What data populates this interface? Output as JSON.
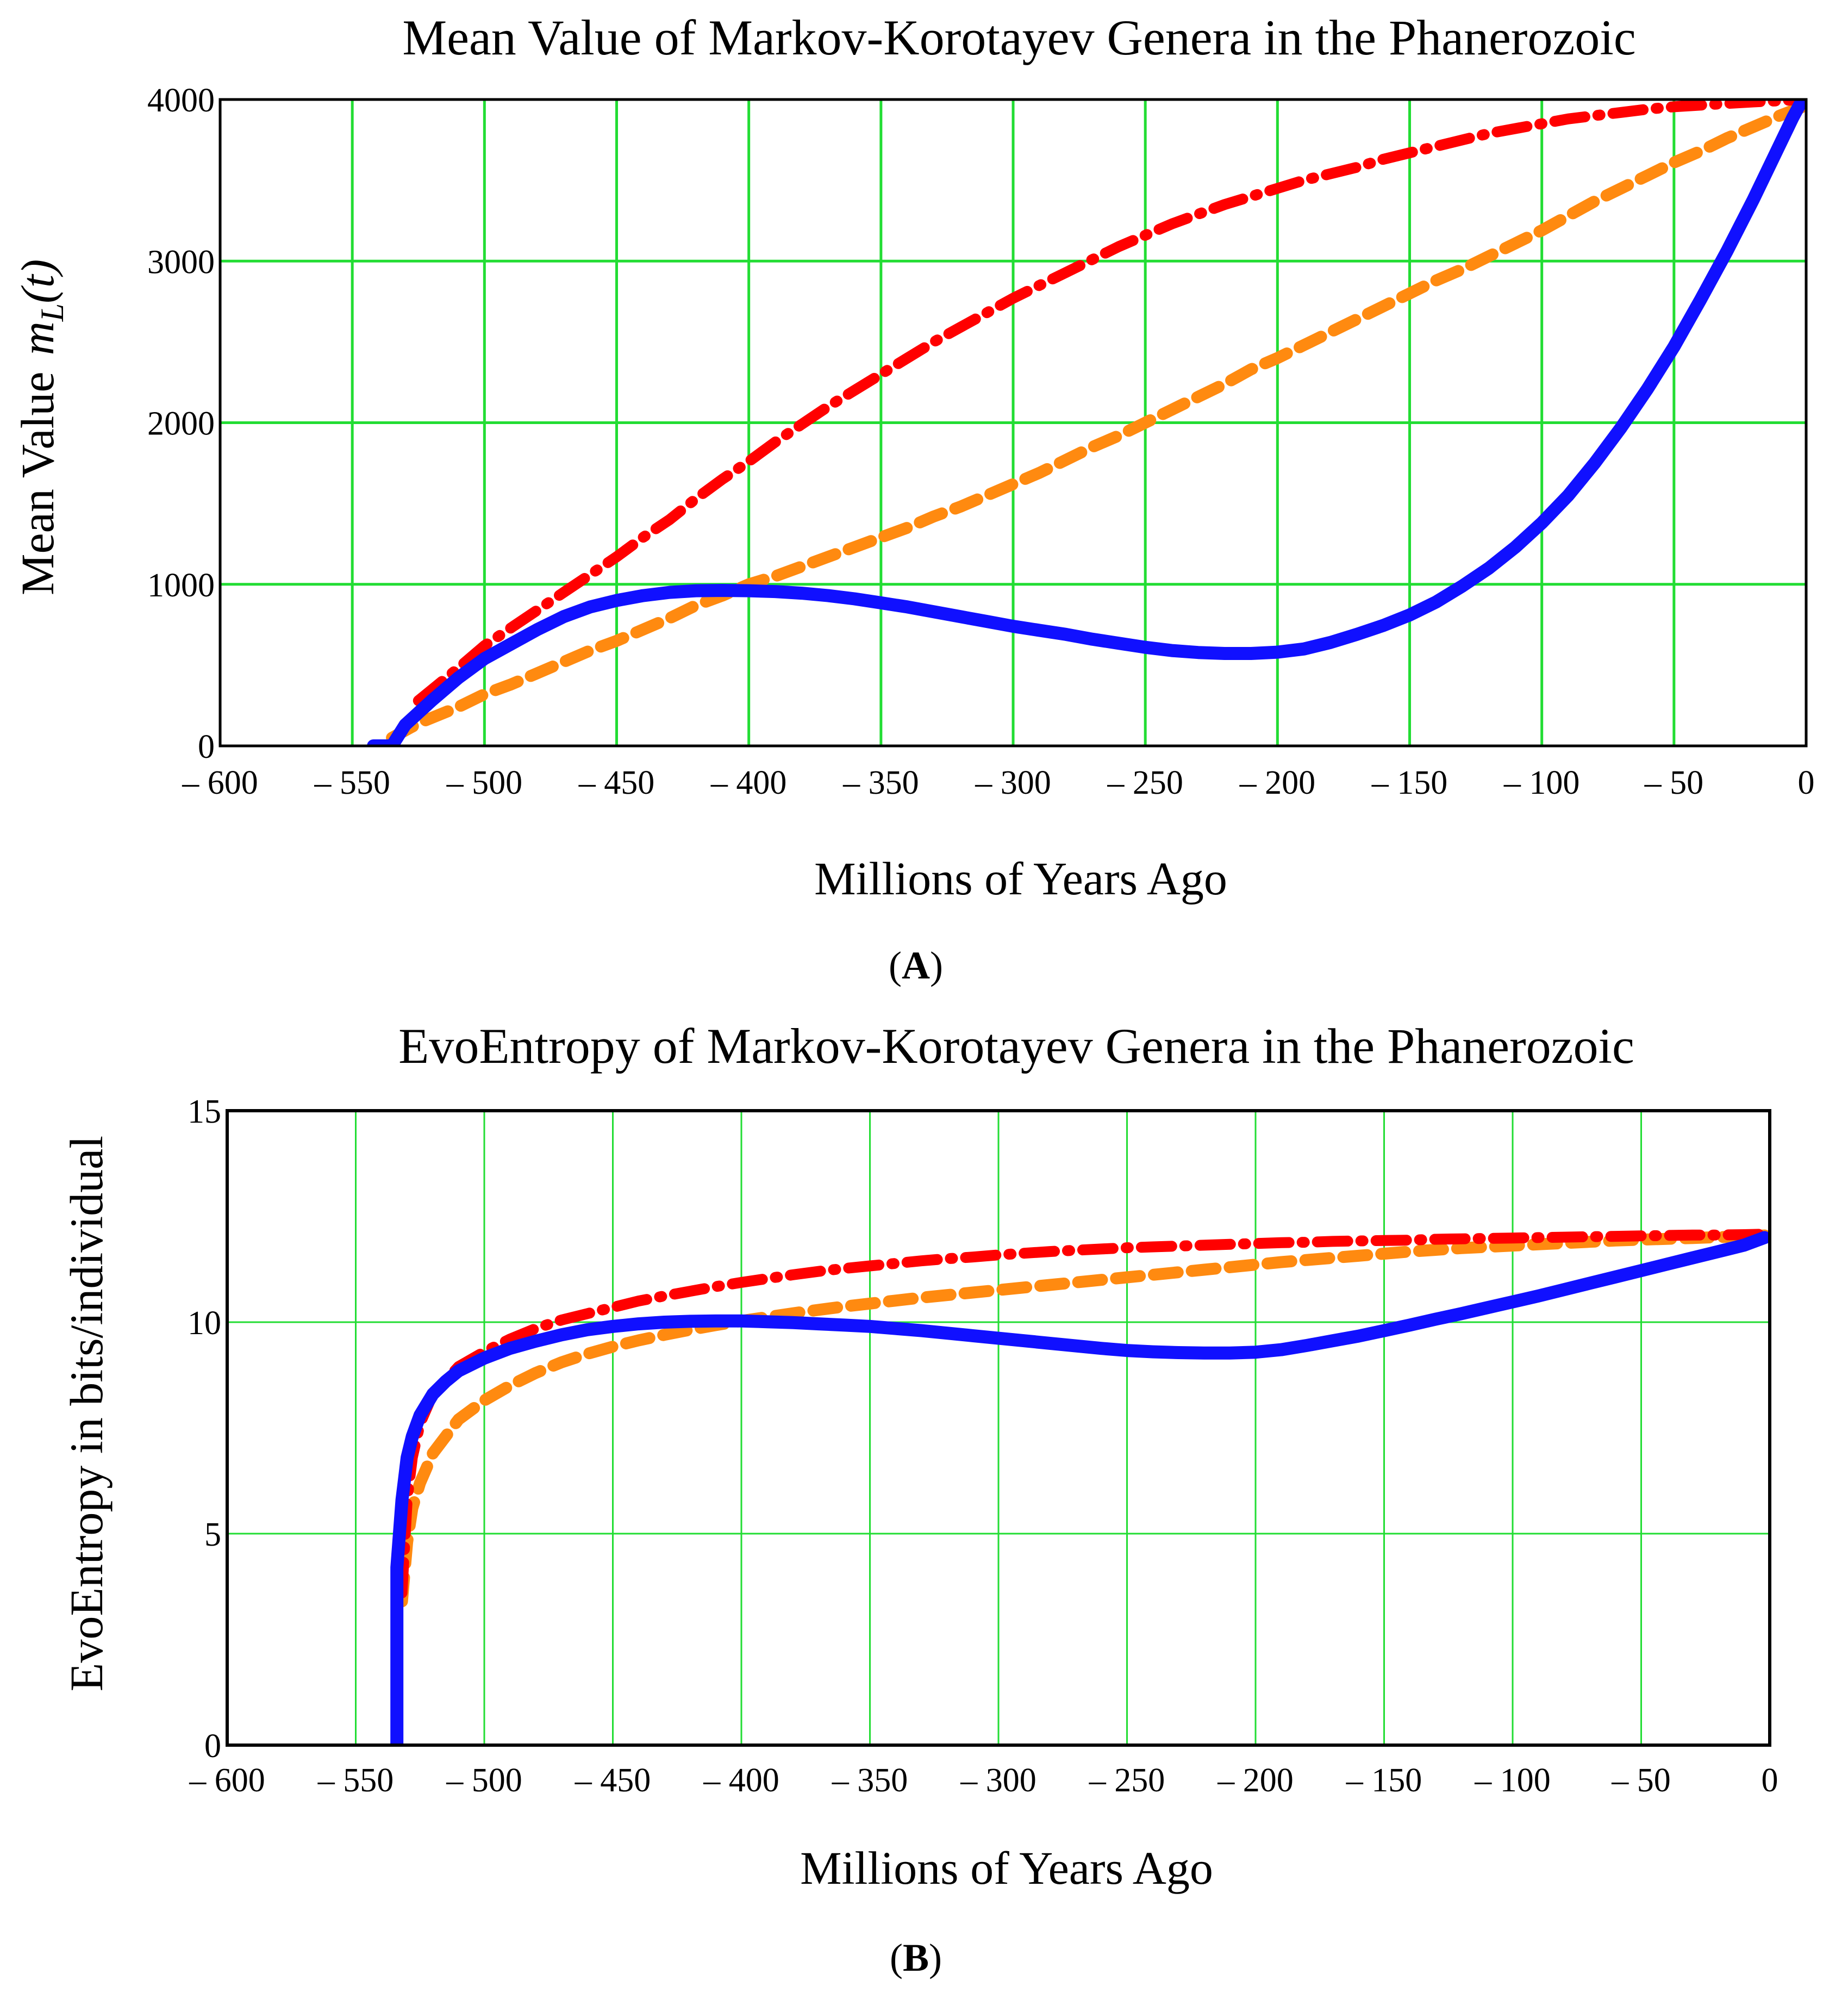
{
  "colors": {
    "grid": "#22dd33",
    "blue": "#1010ff",
    "red": "#ff0000",
    "orange": "#ff8a10",
    "frame": "#000000"
  },
  "chart_data": [
    {
      "type": "line",
      "panel_label_prefix": "(",
      "panel_label": "A",
      "panel_label_suffix": ")",
      "title": "Mean Value of Markov-Korotayev Genera in the Phanerozoic",
      "xlabel": "Millions of Years Ago",
      "ylabel_text": "Mean Value",
      "ylabel_math_m": "m",
      "ylabel_math_sub": "L",
      "ylabel_math_arg": "(t)",
      "xlim": [
        -600,
        0
      ],
      "ylim": [
        0,
        4000
      ],
      "grid": true,
      "x_ticks": [
        -600,
        -550,
        -500,
        -450,
        -400,
        -350,
        -300,
        -250,
        -200,
        -150,
        -100,
        -50,
        0
      ],
      "x_tick_labels": [
        "– 600",
        "– 550",
        "– 500",
        "– 450",
        "– 400",
        "– 350",
        "– 300",
        "– 250",
        "– 200",
        "– 150",
        "– 100",
        "– 50",
        "0"
      ],
      "y_ticks": [
        0,
        1000,
        2000,
        3000,
        4000
      ],
      "y_tick_labels": [
        "0",
        "1000",
        "2000",
        "3000",
        "4000"
      ],
      "series": [
        {
          "name": "blue-solid",
          "color_key": "blue",
          "style": "solid",
          "x": [
            -542,
            -535,
            -530,
            -520,
            -510,
            -500,
            -490,
            -480,
            -470,
            -460,
            -450,
            -440,
            -430,
            -420,
            -410,
            -400,
            -390,
            -380,
            -370,
            -360,
            -350,
            -340,
            -330,
            -320,
            -310,
            -300,
            -290,
            -280,
            -270,
            -260,
            -250,
            -240,
            -230,
            -220,
            -210,
            -200,
            -190,
            -180,
            -170,
            -160,
            -150,
            -140,
            -130,
            -120,
            -110,
            -100,
            -90,
            -80,
            -70,
            -60,
            -50,
            -40,
            -30,
            -20,
            -10,
            -5,
            -2
          ],
          "y": [
            0,
            0,
            130,
            280,
            420,
            540,
            630,
            720,
            800,
            860,
            900,
            930,
            950,
            960,
            962,
            960,
            955,
            945,
            930,
            910,
            885,
            860,
            830,
            800,
            770,
            740,
            715,
            690,
            660,
            635,
            610,
            590,
            578,
            572,
            572,
            580,
            600,
            640,
            690,
            745,
            810,
            890,
            990,
            1100,
            1230,
            1380,
            1550,
            1750,
            1970,
            2210,
            2470,
            2760,
            3060,
            3380,
            3720,
            3890,
            3980
          ]
        },
        {
          "name": "red-dashdot",
          "color_key": "red",
          "style": "dashdot",
          "x": [
            -525,
            -510,
            -500,
            -490,
            -480,
            -470,
            -460,
            -450,
            -440,
            -430,
            -420,
            -410,
            -400,
            -390,
            -380,
            -370,
            -360,
            -350,
            -340,
            -330,
            -320,
            -310,
            -300,
            -290,
            -280,
            -270,
            -260,
            -250,
            -240,
            -230,
            -220,
            -210,
            -200,
            -190,
            -180,
            -170,
            -160,
            -150,
            -140,
            -130,
            -120,
            -110,
            -100,
            -90,
            -80,
            -70,
            -60,
            -50,
            -40,
            -30,
            -20,
            -10,
            -2
          ],
          "y": [
            280,
            480,
            620,
            730,
            840,
            950,
            1060,
            1170,
            1290,
            1400,
            1530,
            1650,
            1760,
            1880,
            1990,
            2100,
            2200,
            2300,
            2400,
            2500,
            2590,
            2680,
            2770,
            2850,
            2930,
            3010,
            3090,
            3160,
            3230,
            3290,
            3350,
            3400,
            3450,
            3500,
            3540,
            3580,
            3630,
            3670,
            3710,
            3750,
            3790,
            3820,
            3850,
            3880,
            3900,
            3920,
            3940,
            3955,
            3965,
            3975,
            3985,
            3992,
            4000
          ]
        },
        {
          "name": "orange-dashed",
          "color_key": "orange",
          "style": "dashed",
          "x": [
            -535,
            -525,
            -510,
            -500,
            -490,
            -480,
            -470,
            -460,
            -450,
            -440,
            -430,
            -420,
            -410,
            -400,
            -390,
            -380,
            -370,
            -360,
            -350,
            -340,
            -330,
            -320,
            -310,
            -300,
            -290,
            -280,
            -270,
            -260,
            -250,
            -240,
            -230,
            -220,
            -210,
            -200,
            -190,
            -180,
            -170,
            -160,
            -150,
            -140,
            -130,
            -120,
            -110,
            -100,
            -90,
            -80,
            -70,
            -60,
            -50,
            -40,
            -30,
            -20,
            -10,
            -2
          ],
          "y": [
            50,
            140,
            240,
            320,
            380,
            450,
            520,
            590,
            650,
            720,
            790,
            870,
            930,
            1000,
            1050,
            1110,
            1170,
            1230,
            1290,
            1350,
            1420,
            1480,
            1550,
            1620,
            1690,
            1770,
            1850,
            1920,
            2000,
            2080,
            2160,
            2240,
            2330,
            2400,
            2480,
            2560,
            2640,
            2720,
            2800,
            2880,
            2950,
            3030,
            3110,
            3190,
            3280,
            3370,
            3450,
            3530,
            3610,
            3680,
            3760,
            3830,
            3900,
            3950
          ]
        }
      ]
    },
    {
      "type": "line",
      "panel_label_prefix": "(",
      "panel_label": "B",
      "panel_label_suffix": ")",
      "title": "EvoEntropy of Markov-Korotayev Genera in the Phanerozoic",
      "xlabel": "Millions of Years Ago",
      "ylabel": "EvoEntropy in bits/individual",
      "xlim": [
        -600,
        0
      ],
      "ylim": [
        0,
        15
      ],
      "grid": true,
      "x_ticks": [
        -600,
        -550,
        -500,
        -450,
        -400,
        -350,
        -300,
        -250,
        -200,
        -150,
        -100,
        -50,
        0
      ],
      "x_tick_labels": [
        "– 600",
        "– 550",
        "– 500",
        "– 450",
        "– 400",
        "– 350",
        "– 300",
        "– 250",
        "– 200",
        "– 150",
        "– 100",
        "– 50",
        "0"
      ],
      "y_ticks": [
        0,
        5,
        10,
        15
      ],
      "y_tick_labels": [
        "0",
        "5",
        "10",
        "15"
      ],
      "series": [
        {
          "name": "blue-solid",
          "color_key": "blue",
          "style": "solid",
          "x": [
            -534,
            -534,
            -534,
            -533,
            -532,
            -531,
            -530,
            -528,
            -525,
            -520,
            -515,
            -510,
            -500,
            -490,
            -480,
            -470,
            -460,
            -450,
            -440,
            -430,
            -420,
            -410,
            -400,
            -390,
            -380,
            -370,
            -360,
            -350,
            -340,
            -330,
            -320,
            -310,
            -300,
            -290,
            -280,
            -270,
            -260,
            -250,
            -240,
            -230,
            -220,
            -210,
            -200,
            -190,
            -180,
            -170,
            -160,
            -150,
            -140,
            -130,
            -120,
            -110,
            -100,
            -90,
            -80,
            -70,
            -60,
            -50,
            -40,
            -30,
            -20,
            -10,
            -2
          ],
          "y": [
            0,
            2,
            4.2,
            5,
            5.8,
            6.3,
            6.8,
            7.3,
            7.8,
            8.3,
            8.6,
            8.85,
            9.15,
            9.38,
            9.55,
            9.7,
            9.82,
            9.9,
            9.96,
            10.0,
            10.02,
            10.03,
            10.03,
            10.01,
            9.99,
            9.96,
            9.93,
            9.9,
            9.85,
            9.8,
            9.74,
            9.68,
            9.62,
            9.56,
            9.5,
            9.44,
            9.38,
            9.33,
            9.3,
            9.28,
            9.27,
            9.27,
            9.29,
            9.35,
            9.45,
            9.56,
            9.67,
            9.8,
            9.93,
            10.07,
            10.2,
            10.34,
            10.48,
            10.62,
            10.77,
            10.92,
            11.07,
            11.22,
            11.37,
            11.52,
            11.67,
            11.82,
            12.0
          ]
        },
        {
          "name": "red-dashdot",
          "color_key": "red",
          "style": "dashdot",
          "x": [
            -532,
            -530,
            -528,
            -525,
            -520,
            -510,
            -500,
            -490,
            -480,
            -470,
            -460,
            -450,
            -440,
            -430,
            -420,
            -410,
            -400,
            -390,
            -380,
            -370,
            -360,
            -350,
            -340,
            -330,
            -320,
            -310,
            -300,
            -290,
            -280,
            -270,
            -260,
            -250,
            -240,
            -230,
            -220,
            -210,
            -200,
            -190,
            -180,
            -170,
            -160,
            -150,
            -140,
            -130,
            -120,
            -110,
            -100,
            -90,
            -80,
            -70,
            -60,
            -50,
            -40,
            -30,
            -20,
            -10,
            -2
          ],
          "y": [
            3.6,
            5.8,
            6.8,
            7.6,
            8.3,
            8.95,
            9.3,
            9.6,
            9.85,
            10.05,
            10.2,
            10.35,
            10.5,
            10.62,
            10.73,
            10.84,
            10.94,
            11.03,
            11.12,
            11.2,
            11.27,
            11.33,
            11.39,
            11.45,
            11.5,
            11.54,
            11.59,
            11.63,
            11.67,
            11.7,
            11.73,
            11.76,
            11.78,
            11.8,
            11.82,
            11.84,
            11.86,
            11.88,
            11.89,
            11.91,
            11.92,
            11.93,
            11.94,
            11.96,
            11.97,
            11.98,
            11.99,
            12.0,
            12.01,
            12.02,
            12.03,
            12.04,
            12.05,
            12.06,
            12.06,
            12.07,
            12.08
          ]
        },
        {
          "name": "orange-dashed",
          "color_key": "orange",
          "style": "dashed",
          "x": [
            -532,
            -530,
            -528,
            -525,
            -520,
            -510,
            -500,
            -490,
            -480,
            -470,
            -460,
            -450,
            -440,
            -430,
            -420,
            -410,
            -400,
            -390,
            -380,
            -370,
            -360,
            -350,
            -340,
            -330,
            -320,
            -310,
            -300,
            -290,
            -280,
            -270,
            -260,
            -250,
            -240,
            -230,
            -220,
            -210,
            -200,
            -190,
            -180,
            -170,
            -160,
            -150,
            -140,
            -130,
            -120,
            -110,
            -100,
            -90,
            -80,
            -70,
            -60,
            -50,
            -40,
            -30,
            -20,
            -10,
            -2
          ],
          "y": [
            3.4,
            4.8,
            5.6,
            6.2,
            6.9,
            7.7,
            8.15,
            8.5,
            8.8,
            9.05,
            9.25,
            9.42,
            9.57,
            9.7,
            9.82,
            9.93,
            10.03,
            10.12,
            10.21,
            10.29,
            10.37,
            10.44,
            10.51,
            10.58,
            10.64,
            10.7,
            10.76,
            10.82,
            10.88,
            10.94,
            11.0,
            11.06,
            11.12,
            11.18,
            11.24,
            11.3,
            11.36,
            11.42,
            11.47,
            11.52,
            11.57,
            11.62,
            11.67,
            11.71,
            11.75,
            11.78,
            11.81,
            11.84,
            11.87,
            11.9,
            11.93,
            11.95,
            11.97,
            11.99,
            12.01,
            12.03,
            12.05
          ]
        }
      ]
    }
  ]
}
